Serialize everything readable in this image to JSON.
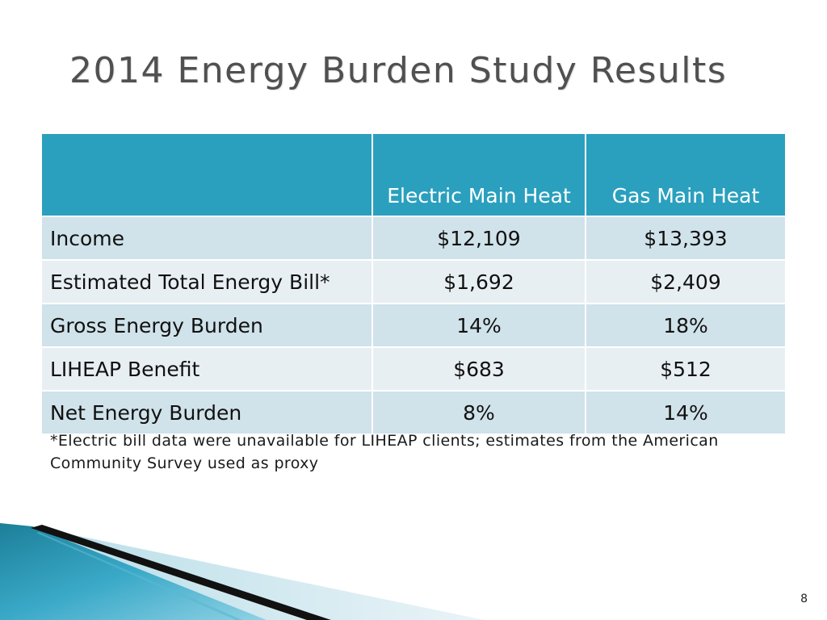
{
  "slide": {
    "title": "2014 Energy Burden Study Results",
    "page_number": "8"
  },
  "table": {
    "headers": [
      "",
      "Electric Main Heat",
      "Gas Main Heat"
    ],
    "rows": [
      {
        "label": "Income",
        "electric": "$12,109",
        "gas": "$13,393"
      },
      {
        "label": "Estimated Total Energy Bill*",
        "electric": "$1,692",
        "gas": "$2,409"
      },
      {
        "label": "Gross Energy Burden",
        "electric": "14%",
        "gas": "18%"
      },
      {
        "label": "LIHEAP Benefit",
        "electric": "$683",
        "gas": "$512"
      },
      {
        "label": "Net Energy Burden",
        "electric": "8%",
        "gas": "14%"
      }
    ]
  },
  "footnote": "*Electric bill data were unavailable for LIHEAP clients; estimates from the American Community Survey used as proxy",
  "colors": {
    "header_bg": "#2aa0be",
    "row_odd": "#d0e2ea",
    "row_even": "#e8eff3",
    "title_text": "#505050"
  }
}
